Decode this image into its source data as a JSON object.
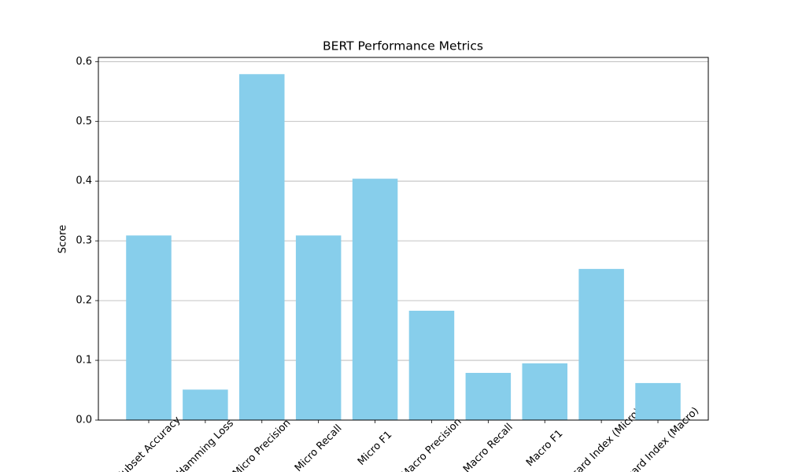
{
  "chart_data": {
    "type": "bar",
    "title": "BERT Performance Metrics",
    "y_label": "Score",
    "categories": [
      "Subset Accuracy",
      "Hamming Loss",
      "Micro Precision",
      "Micro Recall",
      "Micro F1",
      "Macro Precision",
      "Macro Recall",
      "Macro F1",
      "Jaccard Index (Micro)",
      "Jaccard Index (Macro)"
    ],
    "values": [
      0.309,
      0.051,
      0.579,
      0.309,
      0.404,
      0.183,
      0.079,
      0.095,
      0.253,
      0.062
    ],
    "color": "#87ceeb",
    "ylim": [
      0,
      0.607
    ],
    "yticks": [
      {
        "value": 0,
        "label": "0.0"
      },
      0.1,
      0.2,
      0.3,
      0.4,
      0.5,
      0.6
    ],
    "grid": true
  }
}
